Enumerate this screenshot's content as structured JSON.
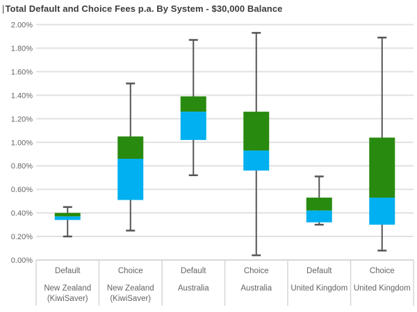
{
  "header": {
    "cursor": "|",
    "title": "Total Default and Choice Fees p.a. By System - $30,000 Balance"
  },
  "chart_data": {
    "type": "boxplot",
    "title": "Total Default and Choice Fees p.a. By System - $30,000 Balance",
    "legend": "none",
    "y_axis": {
      "min": 0,
      "max": 2.0,
      "step": 0.2,
      "unit": "%",
      "grid": true,
      "tick_labels": [
        "0.00%",
        "0.20%",
        "0.40%",
        "0.60%",
        "0.80%",
        "1.00%",
        "1.20%",
        "1.40%",
        "1.60%",
        "1.80%",
        "2.00%"
      ]
    },
    "categories": [
      {
        "fund_type": "Default",
        "system_lines": [
          "New Zealand",
          "(KiwiSaver)"
        ]
      },
      {
        "fund_type": "Choice",
        "system_lines": [
          "New Zealand",
          "(KiwiSaver)"
        ]
      },
      {
        "fund_type": "Default",
        "system_lines": [
          "Australia"
        ]
      },
      {
        "fund_type": "Choice",
        "system_lines": [
          "Australia"
        ]
      },
      {
        "fund_type": "Default",
        "system_lines": [
          "United Kingdom"
        ]
      },
      {
        "fund_type": "Choice",
        "system_lines": [
          "United Kingdom"
        ]
      }
    ],
    "boxes_pct": [
      {
        "min": 0.2,
        "q1": 0.34,
        "median": 0.37,
        "q3": 0.4,
        "max": 0.45
      },
      {
        "min": 0.25,
        "q1": 0.51,
        "median": 0.86,
        "q3": 1.05,
        "max": 1.5
      },
      {
        "min": 0.72,
        "q1": 1.02,
        "median": 1.26,
        "q3": 1.39,
        "max": 1.87
      },
      {
        "min": 0.04,
        "q1": 0.76,
        "median": 0.93,
        "q3": 1.26,
        "max": 1.93
      },
      {
        "min": 0.3,
        "q1": 0.32,
        "median": 0.42,
        "q3": 0.53,
        "max": 0.71
      },
      {
        "min": 0.08,
        "q1": 0.3,
        "median": 0.53,
        "q3": 1.04,
        "max": 1.89
      }
    ],
    "colors": {
      "box_lower": "#00b0f0",
      "box_upper": "#288a0e",
      "whisker": "#545454",
      "gridline": "#e1e1e1",
      "axis_line": "#d6d6d6",
      "label_text": "#636363",
      "title_text": "#3b3b3b"
    }
  }
}
